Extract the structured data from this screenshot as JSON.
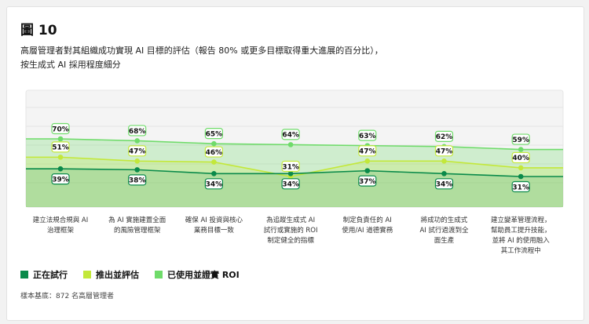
{
  "figure": {
    "title": "圖 10",
    "subtitle_lines": [
      "高層管理者對其組織成功實現 AI 目標的評估（報告 80% 或更多目標取得重大進展的百分比），",
      "按生成式 AI 採用程度細分"
    ],
    "footnote": "樣本基底：872 名高層管理者"
  },
  "chart_data": {
    "type": "area",
    "categories": [
      [
        "建立法規合規與 AI",
        "治理框架"
      ],
      [
        "為 AI 實施建置全面",
        "的風險管理框架"
      ],
      [
        "確保 AI 投資與核心",
        "業務目標一致"
      ],
      [
        "為追蹤生成式 AI",
        "試行或實施的 ROI",
        "制定健全的指標"
      ],
      [
        "制定負責任的 AI",
        "使用/AI 道德實務"
      ],
      [
        "將成功的生成式",
        "AI 試行過渡到全",
        "面生產"
      ],
      [
        "建立變革管理流程，",
        "幫助員工提升技能，",
        "並將 AI 的使用融入",
        "其工作流程中"
      ]
    ],
    "series": [
      {
        "name": "已使用並證實 ROI",
        "color": "#6fdb6a",
        "values": [
          70,
          68,
          65,
          64,
          63,
          62,
          59
        ]
      },
      {
        "name": "推出並評估",
        "color": "#c3e83a",
        "values": [
          51,
          47,
          46,
          31,
          47,
          47,
          40
        ]
      },
      {
        "name": "正在試行",
        "color": "#0a8a4a",
        "values": [
          39,
          38,
          34,
          34,
          37,
          34,
          31
        ]
      }
    ],
    "legend_order": [
      "正在試行",
      "推出並評估",
      "已使用並證實 ROI"
    ],
    "value_suffix": "%",
    "ylim": [
      0,
      100
    ],
    "grid": true,
    "legend_position": "bottom-left"
  }
}
